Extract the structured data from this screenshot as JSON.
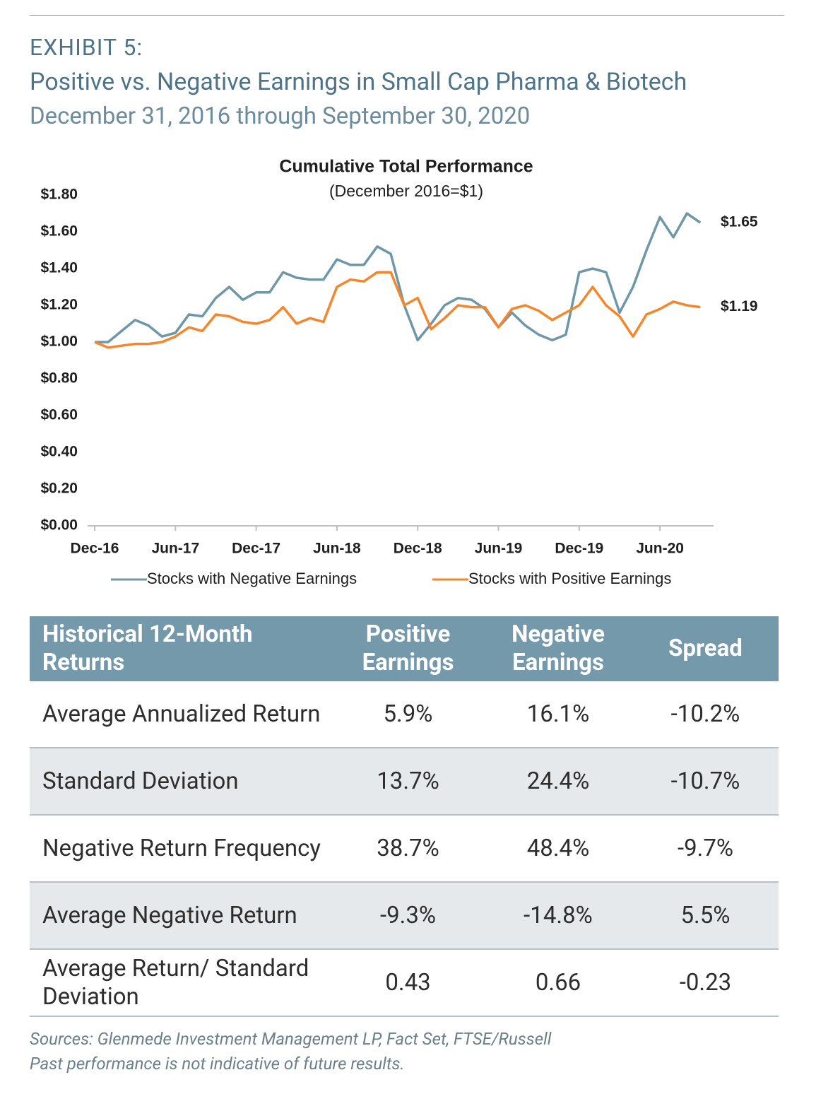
{
  "header": {
    "exhibit": "EXHIBIT 5:",
    "title": "Positive vs. Negative Earnings in Small Cap Pharma & Biotech",
    "subtitle": "December 31, 2016 through September 30, 2020"
  },
  "chart_data": {
    "type": "line",
    "title": "Cumulative Total Performance",
    "subtitle": "(December 2016=$1)",
    "categories": [
      "Dec-16",
      null,
      null,
      null,
      null,
      null,
      "Jun-17",
      null,
      null,
      null,
      null,
      null,
      "Dec-17",
      null,
      null,
      null,
      null,
      null,
      "Jun-18",
      null,
      null,
      null,
      null,
      null,
      "Dec-18",
      null,
      null,
      null,
      null,
      null,
      "Jun-19",
      null,
      null,
      null,
      null,
      null,
      "Dec-19",
      null,
      null,
      null,
      null,
      null,
      "Jun-20",
      null,
      null,
      null
    ],
    "series": [
      {
        "name": "Stocks with Negative Earnings",
        "color": "#6e97a8",
        "values": [
          1.0,
          1.0,
          1.06,
          1.12,
          1.09,
          1.03,
          1.05,
          1.15,
          1.14,
          1.24,
          1.3,
          1.23,
          1.27,
          1.27,
          1.38,
          1.35,
          1.34,
          1.34,
          1.45,
          1.42,
          1.42,
          1.52,
          1.48,
          1.2,
          1.01,
          1.1,
          1.2,
          1.24,
          1.23,
          1.18,
          1.08,
          1.16,
          1.09,
          1.04,
          1.01,
          1.04,
          1.38,
          1.4,
          1.38,
          1.16,
          1.3,
          1.5,
          1.68,
          1.57,
          1.7,
          1.65
        ],
        "value_labels": [
          null,
          null,
          null,
          null,
          null,
          null,
          null,
          null,
          null,
          null,
          null,
          null,
          null,
          null,
          null,
          null,
          null,
          null,
          null,
          null,
          null,
          null,
          null,
          null,
          null,
          null,
          null,
          null,
          null,
          null,
          null,
          null,
          null,
          null,
          null,
          null,
          null,
          null,
          null,
          null,
          null,
          null,
          null,
          null,
          null,
          "$1.65"
        ]
      },
      {
        "name": "Stocks with Positive Earnings",
        "color": "#f5862c",
        "values": [
          1.0,
          0.97,
          0.98,
          0.99,
          0.99,
          1.0,
          1.03,
          1.08,
          1.06,
          1.15,
          1.14,
          1.11,
          1.1,
          1.12,
          1.19,
          1.1,
          1.13,
          1.11,
          1.3,
          1.34,
          1.33,
          1.38,
          1.38,
          1.2,
          1.24,
          1.07,
          1.13,
          1.2,
          1.19,
          1.19,
          1.08,
          1.18,
          1.2,
          1.17,
          1.12,
          1.16,
          1.2,
          1.3,
          1.2,
          1.14,
          1.03,
          1.15,
          1.18,
          1.22,
          1.2,
          1.19
        ],
        "value_labels": [
          null,
          null,
          null,
          null,
          null,
          null,
          null,
          null,
          null,
          null,
          null,
          null,
          null,
          null,
          null,
          null,
          null,
          null,
          null,
          null,
          null,
          null,
          null,
          null,
          null,
          null,
          null,
          null,
          null,
          null,
          null,
          null,
          null,
          null,
          null,
          null,
          null,
          null,
          null,
          null,
          null,
          null,
          null,
          null,
          null,
          "$1.19"
        ]
      }
    ],
    "ylim": [
      0,
      1.8
    ],
    "yticks": [
      {
        "value": 0,
        "label": "$0.00"
      },
      {
        "value": 0.2,
        "label": "$0.20"
      },
      {
        "value": 0.4,
        "label": "$0.40"
      },
      {
        "value": 0.6,
        "label": "$0.60"
      },
      {
        "value": 0.8,
        "label": "$0.80"
      },
      {
        "value": 1.0,
        "label": "$1.00"
      },
      {
        "value": 1.2,
        "label": "$1.20"
      },
      {
        "value": 1.4,
        "label": "$1.40"
      },
      {
        "value": 1.6,
        "label": "$1.60"
      },
      {
        "value": 1.8,
        "label": "$1.80"
      }
    ],
    "grid": false,
    "legend": "bottom"
  },
  "table": {
    "header": [
      "Historical 12-Month Returns",
      "Positive Earnings",
      "Negative Earnings",
      "Spread"
    ],
    "rows": [
      [
        "Average Annualized Return",
        "5.9%",
        "16.1%",
        "-10.2%"
      ],
      [
        "Standard Deviation",
        "13.7%",
        "24.4%",
        "-10.7%"
      ],
      [
        "Negative Return Frequency",
        "38.7%",
        "48.4%",
        "-9.7%"
      ],
      [
        "Average Negative Return",
        "-9.3%",
        "-14.8%",
        "5.5%"
      ],
      [
        "Average Return/ Standard Deviation",
        "0.43",
        "0.66",
        "-0.23"
      ]
    ]
  },
  "footer": {
    "sources": "Sources:  Glenmede Investment Management LP, Fact Set, FTSE/Russell",
    "note": "Past performance is not indicative of future results."
  }
}
